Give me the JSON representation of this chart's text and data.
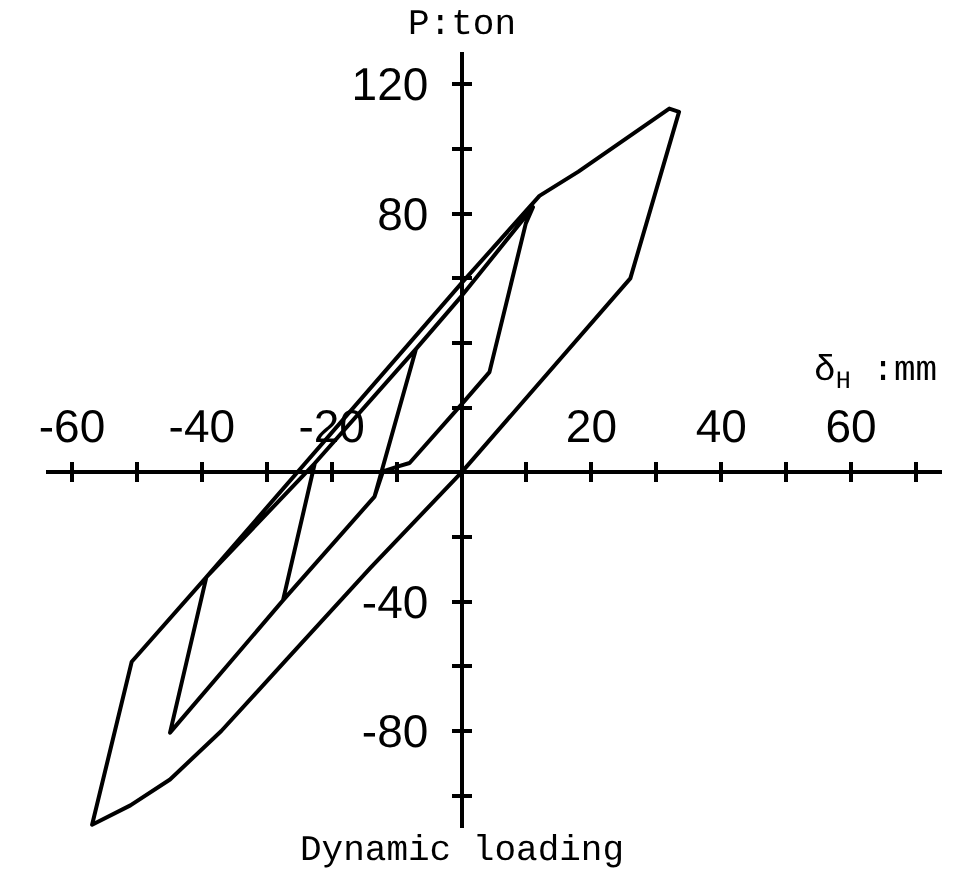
{
  "chart_data": {
    "type": "line",
    "xlabel": "δ$_{H}$ :mm",
    "ylabel": "P:ton",
    "annotations": [
      "Dynamic loading"
    ],
    "line_style": "solid",
    "x": [
      -7,
      -13.4,
      -27.5,
      -44.9,
      -39.3,
      -50.8,
      -56.9,
      -51,
      -44.9,
      -37,
      -27,
      -14,
      0,
      26,
      33.5,
      32,
      18,
      12,
      0,
      -39.3,
      -22.6,
      -27.5,
      -13.4,
      -12.1,
      -9.5,
      -8,
      0,
      4.3,
      9.9,
      11,
      0,
      -7,
      -22.6
    ],
    "series": [
      {
        "color": "#000000",
        "values": [
          38.2,
          -7.5,
          -39.6,
          -80.5,
          -32.4,
          -58.6,
          -109,
          -103,
          -95,
          -80,
          -58,
          -29.5,
          0,
          60,
          111.5,
          112.5,
          93,
          85.5,
          58.5,
          -32.4,
          2.8,
          -39.6,
          -7.5,
          0.3,
          2,
          2.9,
          21,
          31,
          77,
          82,
          54.5,
          38.2,
          2.8
        ]
      }
    ],
    "xlim": [
      -64,
      74
    ],
    "ylim": [
      -110,
      130
    ],
    "xticks": [
      -60,
      {
        "value": -50,
        "label": null
      },
      -40,
      {
        "value": -30,
        "label": null
      },
      -20,
      {
        "value": -10,
        "label": null
      },
      {
        "value": 10,
        "label": null
      },
      20,
      {
        "value": 30,
        "label": null
      },
      40,
      {
        "value": 50,
        "label": null
      },
      60,
      {
        "value": 70,
        "label": null
      }
    ],
    "yticks": [
      {
        "value": -100,
        "label": null
      },
      -80,
      {
        "value": -60,
        "label": null
      },
      -40,
      {
        "value": -20,
        "label": null
      },
      {
        "value": 20,
        "label": null
      },
      {
        "value": 40,
        "label": null
      },
      {
        "value": 60,
        "label": null
      },
      80,
      {
        "value": 100,
        "label": null
      },
      120
    ]
  }
}
